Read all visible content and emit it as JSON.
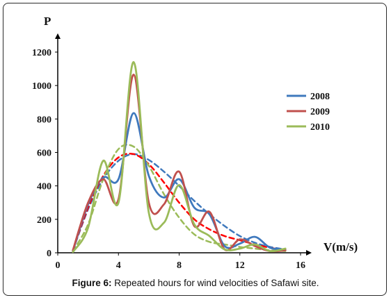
{
  "caption": {
    "label": "Figure 6:",
    "text": " Repeated hours for wind velocities of Safawi site."
  },
  "chart_data": {
    "type": "line",
    "ylabel": "P",
    "xlabel": "V(m/s)",
    "xlim": [
      0,
      16
    ],
    "ylim": [
      0,
      1200
    ],
    "xticks": [
      "0",
      "4",
      "8",
      "12",
      "16"
    ],
    "yticks": [
      "0",
      "200",
      "400",
      "600",
      "800",
      "1000",
      "1200"
    ],
    "grid": false,
    "legend_position": "right",
    "series": [
      {
        "name": "2008",
        "color": "#3f79bd",
        "style": "solid",
        "x": [
          1,
          2,
          3,
          4,
          5,
          6,
          7,
          8,
          9,
          10,
          11,
          12,
          13,
          14,
          15
        ],
        "y": [
          10,
          290,
          450,
          440,
          835,
          460,
          330,
          440,
          270,
          230,
          40,
          55,
          95,
          30,
          20
        ]
      },
      {
        "name": "2009",
        "color": "#c0504d",
        "style": "solid",
        "x": [
          1,
          2,
          3,
          4,
          5,
          6,
          7,
          8,
          9,
          10,
          11,
          12,
          13,
          14,
          15
        ],
        "y": [
          15,
          300,
          440,
          320,
          1065,
          300,
          290,
          485,
          160,
          245,
          20,
          80,
          40,
          10,
          15
        ]
      },
      {
        "name": "2010",
        "color": "#9bbb59",
        "style": "solid",
        "x": [
          1,
          2,
          3,
          4,
          5,
          6,
          7,
          8,
          9,
          10,
          11,
          12,
          13,
          14,
          15
        ],
        "y": [
          5,
          150,
          550,
          300,
          1140,
          240,
          180,
          405,
          170,
          100,
          20,
          25,
          50,
          10,
          25
        ]
      },
      {
        "color": "#3f79bd",
        "style": "dashed",
        "x": [
          1,
          2,
          3,
          4,
          5,
          6,
          7,
          8,
          9,
          10,
          11,
          12,
          13,
          14,
          15
        ],
        "y": [
          15,
          260,
          440,
          550,
          590,
          555,
          485,
          400,
          310,
          230,
          160,
          100,
          60,
          35,
          20
        ]
      },
      {
        "color": "#ff0000",
        "style": "dashed",
        "x": [
          1,
          2,
          3,
          4,
          5,
          6,
          7,
          8,
          9,
          10,
          11,
          12,
          13,
          14,
          15
        ],
        "y": [
          15,
          270,
          460,
          570,
          590,
          530,
          420,
          300,
          200,
          140,
          100,
          75,
          50,
          30,
          15
        ]
      },
      {
        "color": "#9bbb59",
        "style": "dashed",
        "x": [
          1,
          2,
          3,
          4,
          5,
          6,
          7,
          8,
          9,
          10,
          11,
          12,
          13,
          14,
          15
        ],
        "y": [
          10,
          170,
          440,
          620,
          635,
          520,
          350,
          210,
          110,
          65,
          50,
          35,
          25,
          15,
          10
        ]
      }
    ]
  }
}
